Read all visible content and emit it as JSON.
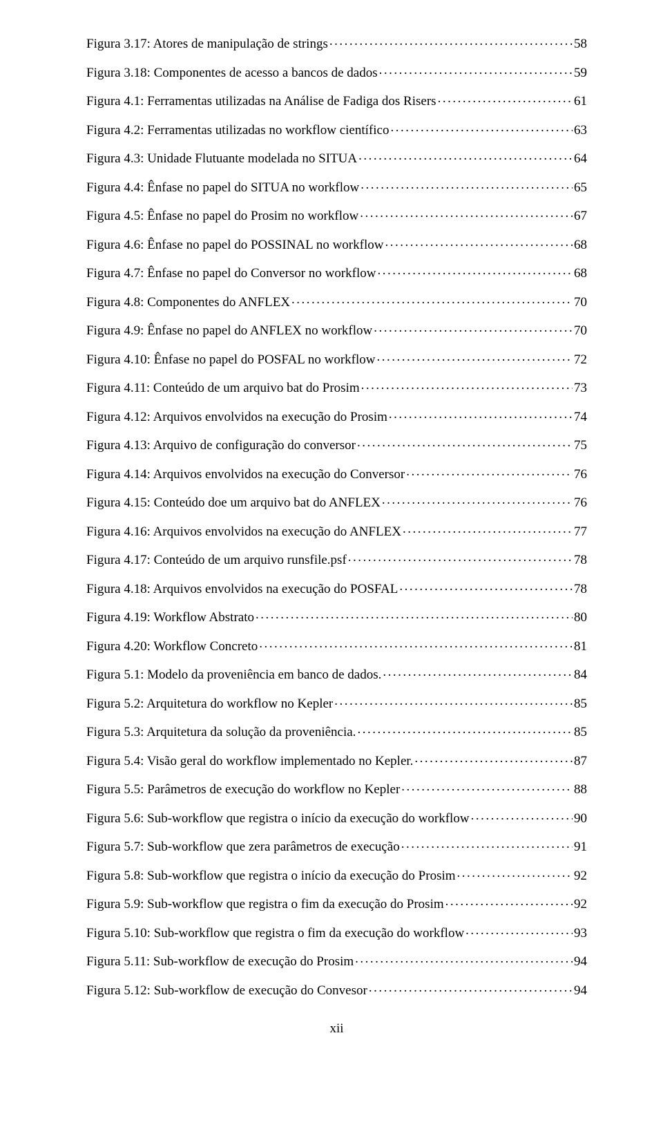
{
  "entries": [
    {
      "label": "Figura 3.17: Atores de manipulação de strings",
      "page": "58"
    },
    {
      "label": "Figura 3.18: Componentes de acesso a bancos de dados",
      "page": "59"
    },
    {
      "label": "Figura 4.1: Ferramentas utilizadas na Análise de Fadiga dos Risers",
      "page": "61"
    },
    {
      "label": "Figura 4.2: Ferramentas utilizadas no workflow científico",
      "page": "63"
    },
    {
      "label": "Figura 4.3: Unidade Flutuante modelada no SITUA",
      "page": "64"
    },
    {
      "label": "Figura 4.4: Ênfase no papel do SITUA no workflow",
      "page": "65"
    },
    {
      "label": "Figura 4.5: Ênfase no papel do Prosim no workflow",
      "page": "67"
    },
    {
      "label": "Figura 4.6: Ênfase no papel do POSSINAL no workflow",
      "page": "68"
    },
    {
      "label": "Figura 4.7: Ênfase no papel do Conversor no workflow",
      "page": "68"
    },
    {
      "label": "Figura 4.8: Componentes do ANFLEX",
      "page": "70"
    },
    {
      "label": "Figura 4.9: Ênfase no papel do ANFLEX no workflow",
      "page": "70"
    },
    {
      "label": "Figura 4.10: Ênfase no papel do POSFAL no workflow",
      "page": "72"
    },
    {
      "label": "Figura 4.11: Conteúdo de um arquivo bat do Prosim",
      "page": "73"
    },
    {
      "label": "Figura 4.12: Arquivos envolvidos na execução do Prosim",
      "page": "74"
    },
    {
      "label": "Figura 4.13: Arquivo de configuração do conversor",
      "page": "75"
    },
    {
      "label": "Figura 4.14: Arquivos envolvidos na execução do Conversor",
      "page": "76"
    },
    {
      "label": "Figura 4.15: Conteúdo doe um arquivo bat do ANFLEX",
      "page": "76"
    },
    {
      "label": "Figura 4.16: Arquivos envolvidos na execução do ANFLEX",
      "page": "77"
    },
    {
      "label": "Figura 4.17: Conteúdo de um arquivo runsfile.psf",
      "page": "78"
    },
    {
      "label": "Figura 4.18: Arquivos envolvidos na execução do POSFAL",
      "page": "78"
    },
    {
      "label": "Figura 4.19: Workflow Abstrato",
      "page": "80"
    },
    {
      "label": "Figura 4.20: Workflow Concreto",
      "page": "81"
    },
    {
      "label": "Figura 5.1: Modelo da proveniência em banco de dados.",
      "page": "84"
    },
    {
      "label": "Figura 5.2: Arquitetura do workflow no Kepler",
      "page": "85"
    },
    {
      "label": "Figura 5.3: Arquitetura da solução da proveniência.",
      "page": "85"
    },
    {
      "label": "Figura 5.4: Visão geral do workflow implementado no Kepler.",
      "page": "87"
    },
    {
      "label": "Figura 5.5: Parâmetros de execução do workflow no Kepler",
      "page": "88"
    },
    {
      "label": "Figura 5.6: Sub-workflow que registra o início da execução do workflow",
      "page": "90"
    },
    {
      "label": "Figura 5.7: Sub-workflow que zera parâmetros de execução",
      "page": "91"
    },
    {
      "label": "Figura 5.8: Sub-workflow que registra o início da execução do Prosim",
      "page": "92"
    },
    {
      "label": "Figura 5.9: Sub-workflow que registra o fim da execução do Prosim",
      "page": "92"
    },
    {
      "label": "Figura 5.10: Sub-workflow que registra o fim da execução do workflow",
      "page": "93"
    },
    {
      "label": "Figura 5.11: Sub-workflow de execução do Prosim",
      "page": "94"
    },
    {
      "label": "Figura 5.12: Sub-workflow de execução do Convesor",
      "page": "94"
    }
  ],
  "page_number": "xii",
  "colors": {
    "background": "#ffffff",
    "text": "#000000"
  },
  "typography": {
    "font_family": "Times New Roman",
    "font_size_pt": 12,
    "line_spacing": 2.0
  }
}
